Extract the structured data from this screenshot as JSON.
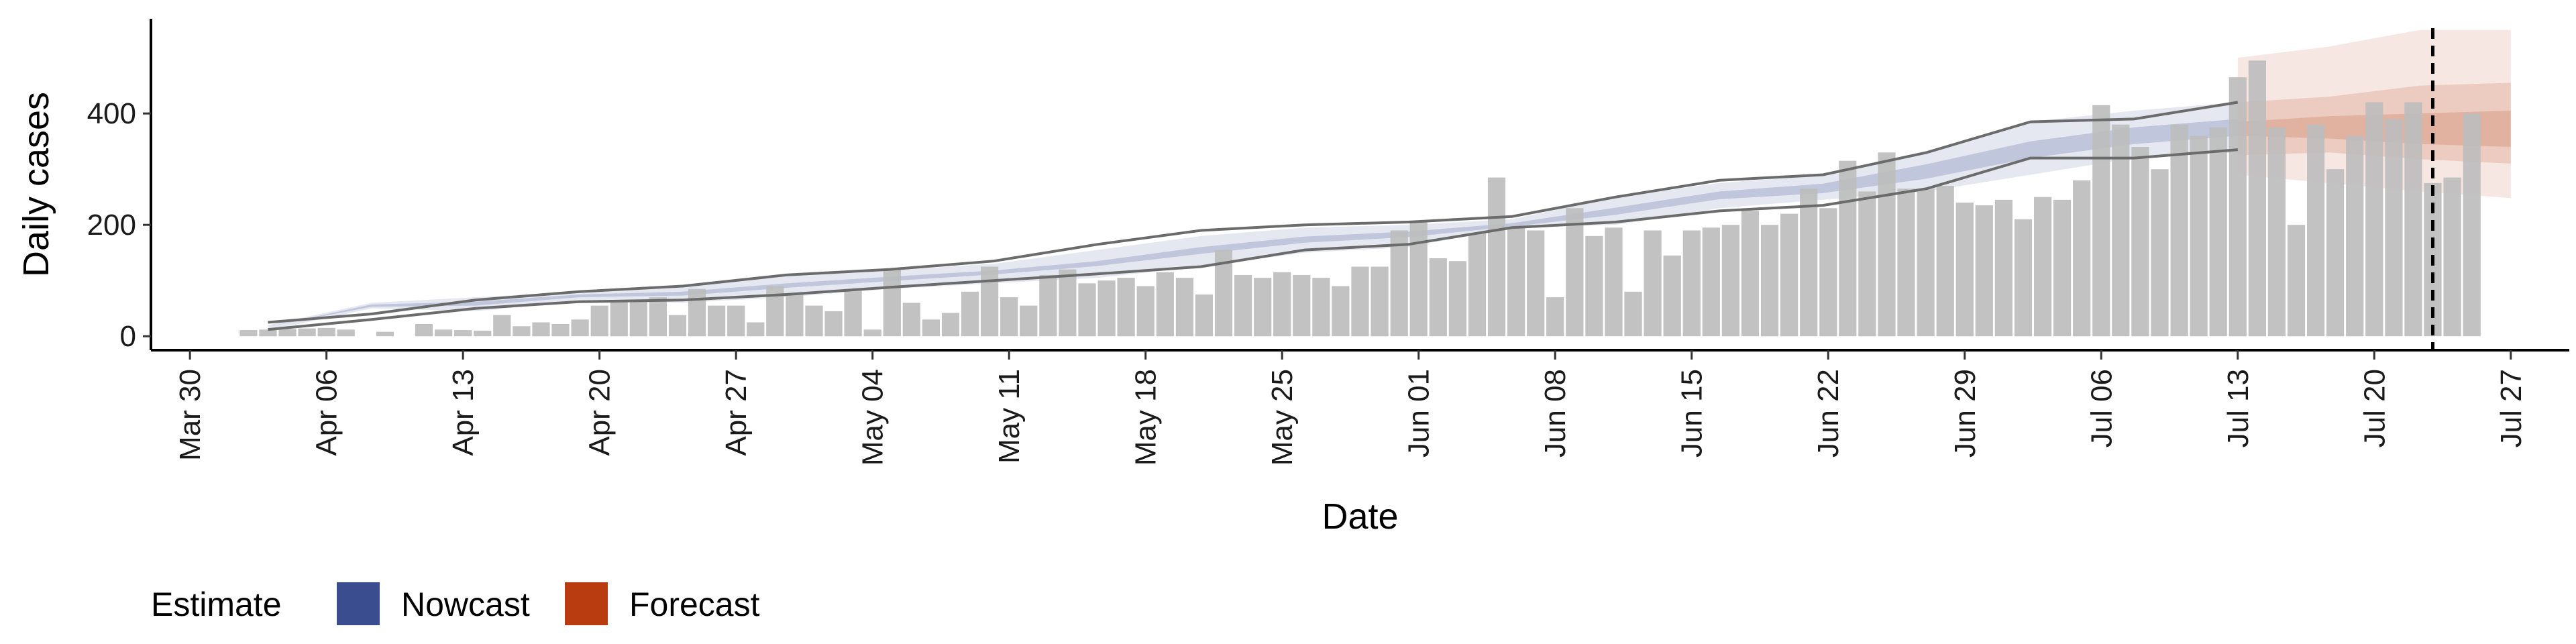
{
  "chart_data": {
    "type": "bar",
    "xlabel": "Date",
    "ylabel": "Daily cases",
    "x_range": [
      "2020-03-28",
      "2020-07-30"
    ],
    "ylim": [
      -25,
      570
    ],
    "y_ticks": [
      0,
      200,
      400
    ],
    "x_ticks": [
      {
        "date": "2020-03-30",
        "label": "Mar 30"
      },
      {
        "date": "2020-04-06",
        "label": "Apr 06"
      },
      {
        "date": "2020-04-13",
        "label": "Apr 13"
      },
      {
        "date": "2020-04-20",
        "label": "Apr 20"
      },
      {
        "date": "2020-04-27",
        "label": "Apr 27"
      },
      {
        "date": "2020-05-04",
        "label": "May 04"
      },
      {
        "date": "2020-05-11",
        "label": "May 11"
      },
      {
        "date": "2020-05-18",
        "label": "May 18"
      },
      {
        "date": "2020-05-25",
        "label": "May 25"
      },
      {
        "date": "2020-06-01",
        "label": "Jun 01"
      },
      {
        "date": "2020-06-08",
        "label": "Jun 08"
      },
      {
        "date": "2020-06-15",
        "label": "Jun 15"
      },
      {
        "date": "2020-06-22",
        "label": "Jun 22"
      },
      {
        "date": "2020-06-29",
        "label": "Jun 29"
      },
      {
        "date": "2020-07-06",
        "label": "Jul 06"
      },
      {
        "date": "2020-07-13",
        "label": "Jul 13"
      },
      {
        "date": "2020-07-20",
        "label": "Jul 20"
      },
      {
        "date": "2020-07-27",
        "label": "Jul 27"
      }
    ],
    "grid": false,
    "legend_position": "bottom-left",
    "legend": {
      "title": "Estimate",
      "items": [
        {
          "label": "Nowcast",
          "color": "#3a4d8f"
        },
        {
          "label": "Forecast",
          "color": "#b83c10"
        }
      ]
    },
    "bar_color": "#bdbdbd",
    "observed_cases": {
      "start_date": "2020-04-02",
      "values": [
        11,
        12,
        13,
        14,
        15,
        12,
        0,
        8,
        0,
        22,
        12,
        11,
        10,
        38,
        18,
        25,
        22,
        30,
        55,
        62,
        65,
        70,
        38,
        85,
        55,
        55,
        25,
        90,
        75,
        55,
        45,
        85,
        12,
        120,
        60,
        30,
        42,
        80,
        125,
        70,
        55,
        110,
        120,
        95,
        100,
        105,
        90,
        115,
        105,
        75,
        155,
        110,
        105,
        115,
        110,
        105,
        90,
        125,
        125,
        190,
        205,
        140,
        135,
        185,
        285,
        195,
        190,
        70,
        230,
        180,
        195,
        80,
        190,
        145,
        190,
        195,
        200,
        225,
        200,
        220,
        265,
        230,
        315,
        260,
        330,
        265,
        265,
        270,
        240,
        235,
        245,
        210,
        250,
        245,
        280,
        415,
        380,
        340,
        300,
        380,
        360,
        375,
        465,
        495,
        375,
        200,
        380,
        300,
        360,
        420,
        390,
        420,
        275,
        285,
        400
      ]
    },
    "nowcast": {
      "start_date": "2020-04-03",
      "end_date": "2020-07-13",
      "outer_lower": [
        10,
        50,
        45,
        62,
        60,
        70,
        85,
        95,
        105,
        125,
        150,
        160,
        195,
        200,
        230,
        245,
        260,
        290,
        320,
        330
      ],
      "outer_upper": [
        20,
        60,
        70,
        80,
        90,
        108,
        118,
        130,
        155,
        180,
        195,
        200,
        210,
        250,
        275,
        290,
        330,
        385,
        405,
        420
      ],
      "inner_lower": [
        17,
        53,
        55,
        70,
        73,
        87,
        99,
        111,
        126,
        148,
        168,
        178,
        197,
        218,
        246,
        257,
        283,
        320,
        345,
        360
      ],
      "inner_upper": [
        17,
        57,
        62,
        75,
        80,
        95,
        107,
        118,
        135,
        160,
        179,
        188,
        203,
        231,
        260,
        274,
        309,
        350,
        375,
        390
      ],
      "line_low": [
        12,
        30,
        50,
        62,
        65,
        75,
        88,
        100,
        112,
        125,
        155,
        165,
        195,
        205,
        225,
        235,
        265,
        320,
        320,
        335
      ],
      "line_high": [
        25,
        40,
        65,
        80,
        90,
        110,
        120,
        135,
        165,
        190,
        200,
        205,
        215,
        250,
        280,
        290,
        330,
        385,
        390,
        420
      ]
    },
    "forecast": {
      "start_date": "2020-07-13",
      "end_date": "2020-07-27",
      "outer_lower": [
        290,
        275,
        260,
        248
      ],
      "outer_upper": [
        500,
        520,
        550,
        550
      ],
      "inner_lower": [
        325,
        330,
        318,
        310
      ],
      "inner_upper": [
        420,
        430,
        450,
        455
      ],
      "core_lower": [
        360,
        355,
        345,
        340
      ],
      "core_upper": [
        385,
        395,
        400,
        405
      ]
    },
    "report_date": "2020-07-23"
  }
}
